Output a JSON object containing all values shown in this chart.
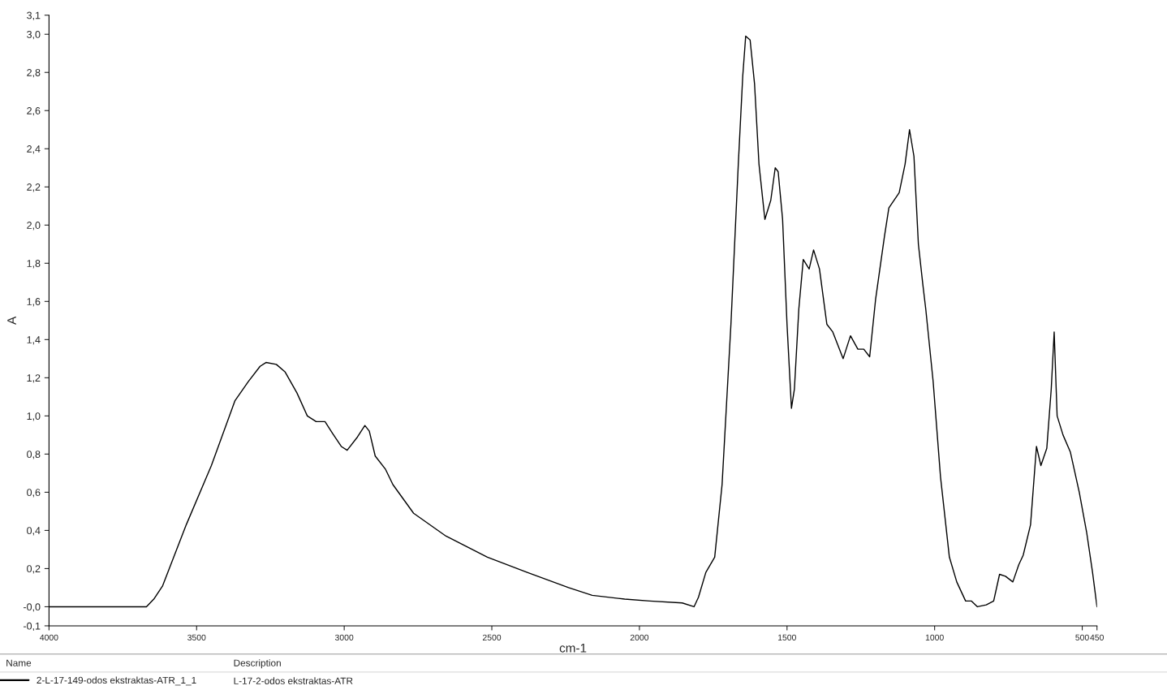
{
  "chart_data": {
    "type": "line",
    "xlabel": "cm-1",
    "ylabel": "A",
    "x": [
      4000,
      3670,
      3645,
      3615,
      3535,
      3450,
      3370,
      3325,
      3285,
      3265,
      3230,
      3200,
      3160,
      3125,
      3095,
      3065,
      3040,
      3010,
      2990,
      2955,
      2930,
      2915,
      2895,
      2860,
      2835,
      2765,
      2655,
      2515,
      2380,
      2240,
      2160,
      2050,
      1965,
      1855,
      1815,
      1800,
      1775,
      1745,
      1720,
      1705,
      1690,
      1665,
      1650,
      1640,
      1625,
      1610,
      1595,
      1575,
      1555,
      1540,
      1530,
      1515,
      1500,
      1485,
      1475,
      1460,
      1445,
      1425,
      1410,
      1390,
      1365,
      1345,
      1310,
      1285,
      1260,
      1240,
      1220,
      1200,
      1170,
      1155,
      1120,
      1100,
      1085,
      1070,
      1055,
      1040,
      1030,
      1005,
      980,
      950,
      925,
      895,
      875,
      855,
      825,
      800,
      780,
      760,
      735,
      715,
      700,
      675,
      655,
      640,
      620,
      605,
      595,
      585,
      565,
      540,
      510,
      485,
      465,
      450
    ],
    "series": [
      {
        "name": "2-L-17-149-odos ekstraktas-ATR_1_1",
        "color": "#000000",
        "values": [
          0.0,
          0.0,
          0.04,
          0.11,
          0.43,
          0.74,
          1.08,
          1.18,
          1.26,
          1.28,
          1.27,
          1.23,
          1.12,
          1.0,
          0.97,
          0.97,
          0.91,
          0.84,
          0.82,
          0.89,
          0.95,
          0.92,
          0.79,
          0.72,
          0.64,
          0.49,
          0.37,
          0.26,
          0.18,
          0.1,
          0.06,
          0.04,
          0.03,
          0.02,
          0.0,
          0.05,
          0.18,
          0.26,
          0.64,
          1.06,
          1.48,
          2.32,
          2.78,
          2.99,
          2.97,
          2.74,
          2.32,
          2.03,
          2.13,
          2.3,
          2.28,
          2.03,
          1.48,
          1.04,
          1.14,
          1.56,
          1.82,
          1.77,
          1.87,
          1.77,
          1.48,
          1.44,
          1.3,
          1.42,
          1.35,
          1.35,
          1.31,
          1.61,
          1.94,
          2.09,
          2.17,
          2.32,
          2.5,
          2.36,
          1.9,
          1.69,
          1.56,
          1.18,
          0.68,
          0.26,
          0.13,
          0.03,
          0.03,
          0.0,
          0.01,
          0.03,
          0.17,
          0.16,
          0.13,
          0.22,
          0.27,
          0.43,
          0.84,
          0.74,
          0.83,
          1.14,
          1.44,
          1.0,
          0.9,
          0.81,
          0.6,
          0.39,
          0.18,
          0.0
        ]
      }
    ],
    "xlim": [
      4000,
      450
    ],
    "xticks": [
      4000,
      3500,
      3000,
      2500,
      2000,
      1500,
      1000,
      500,
      450
    ],
    "ylim": [
      -0.1,
      3.1
    ],
    "yticks": [
      {
        "value": -0.1,
        "label": "-0,1"
      },
      {
        "value": 0,
        "label": "-0,0"
      },
      {
        "value": 0.2,
        "label": "0,2"
      },
      {
        "value": 0.4,
        "label": "0,4"
      },
      {
        "value": 0.6,
        "label": "0,6"
      },
      {
        "value": 0.8,
        "label": "0,8"
      },
      {
        "value": 1.0,
        "label": "1,0"
      },
      {
        "value": 1.2,
        "label": "1,2"
      },
      {
        "value": 1.4,
        "label": "1,4"
      },
      {
        "value": 1.6,
        "label": "1,6"
      },
      {
        "value": 1.8,
        "label": "1,8"
      },
      {
        "value": 2.0,
        "label": "2,0"
      },
      {
        "value": 2.2,
        "label": "2,2"
      },
      {
        "value": 2.4,
        "label": "2,4"
      },
      {
        "value": 2.6,
        "label": "2,6"
      },
      {
        "value": 2.8,
        "label": "2,8"
      },
      {
        "value": 3.0,
        "label": "3,0"
      },
      {
        "value": 3.1,
        "label": "3,1"
      }
    ],
    "grid": false,
    "legend": "bottom left",
    "marker": "none",
    "line_style": "solid",
    "annotations": [
      "Name",
      "Description",
      "L-17-2-odos ekstraktas-ATR"
    ]
  }
}
